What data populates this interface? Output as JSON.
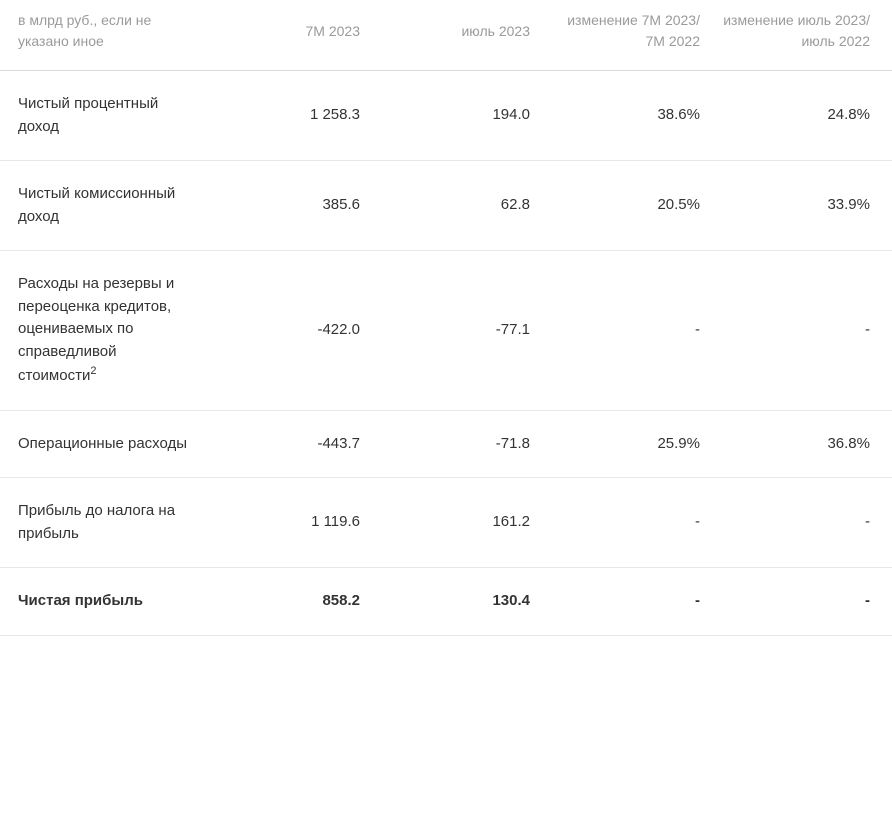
{
  "table": {
    "header": {
      "unit_note": "в млрд руб., если не указано иное",
      "columns": [
        "7М 2023",
        "июль 2023",
        "изменение 7М 2023/ 7М 2022",
        "изменение июль 2023/ июль 2022"
      ]
    },
    "rows": [
      {
        "label": "Чистый процентный доход",
        "footnote": "",
        "bold": false,
        "values": [
          "1 258.3",
          "194.0",
          "38.6%",
          "24.8%"
        ]
      },
      {
        "label": "Чистый комиссионный доход",
        "footnote": "",
        "bold": false,
        "values": [
          "385.6",
          "62.8",
          "20.5%",
          "33.9%"
        ]
      },
      {
        "label": "Расходы на резервы и переоценка кредитов, оцениваемых по справедливой стоимости",
        "footnote": "2",
        "bold": false,
        "values": [
          "-422.0",
          "-77.1",
          "-",
          "-"
        ]
      },
      {
        "label": "Операционные расходы",
        "footnote": "",
        "bold": false,
        "values": [
          "-443.7",
          "-71.8",
          "25.9%",
          "36.8%"
        ]
      },
      {
        "label": "Прибыль до налога на прибыль",
        "footnote": "",
        "bold": false,
        "values": [
          "1 119.6",
          "161.2",
          "-",
          "-"
        ]
      },
      {
        "label": "Чистая прибыль",
        "footnote": "",
        "bold": true,
        "values": [
          "858.2",
          "130.4",
          "-",
          "-"
        ]
      }
    ],
    "style": {
      "type": "table",
      "background_color": "#ffffff",
      "header_text_color": "#9a9a9a",
      "body_text_color": "#333333",
      "border_color": "#e8e8e8",
      "header_border_color": "#d9d9d9",
      "font_family": "sans-serif",
      "header_fontsize": 14,
      "body_fontsize": 15,
      "row_padding_y": 22,
      "label_col_width": 200,
      "align_values": "right",
      "align_label": "left"
    }
  }
}
